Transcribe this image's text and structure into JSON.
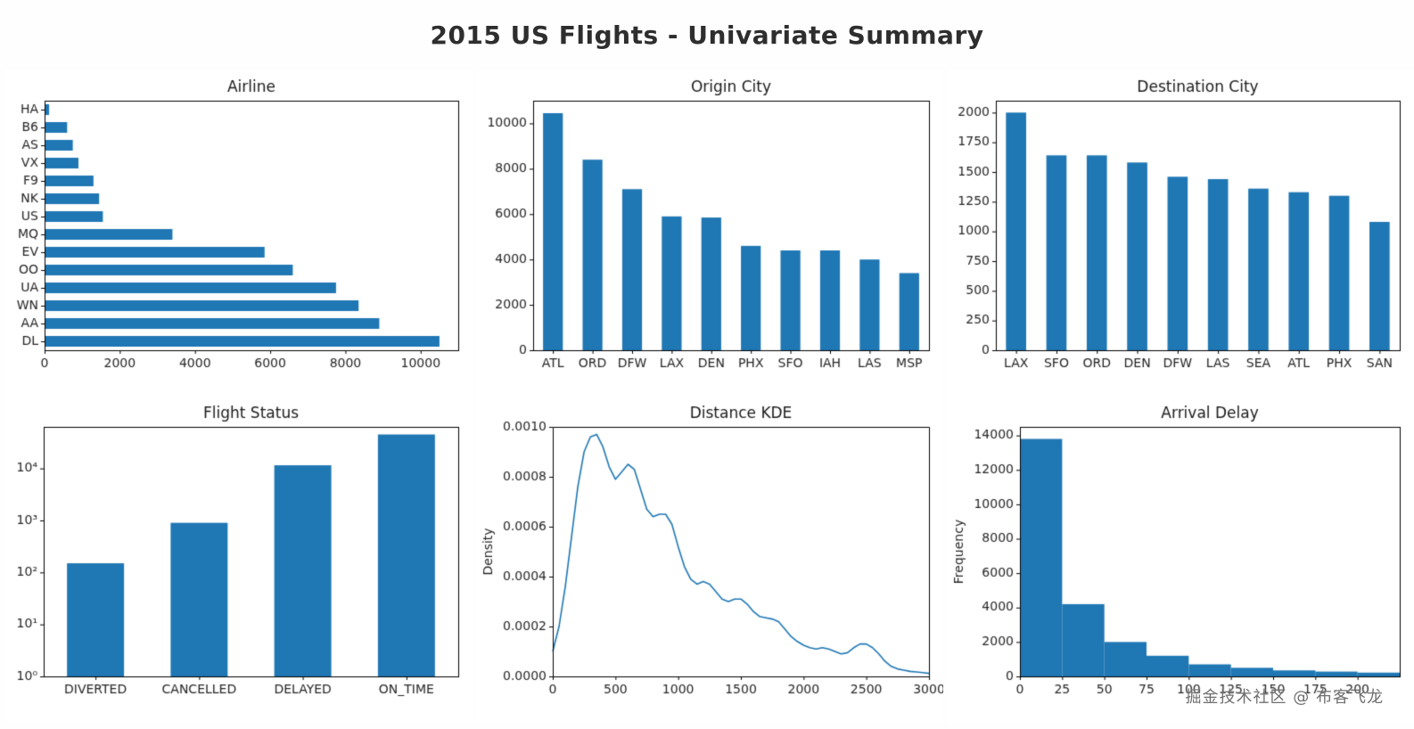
{
  "figure": {
    "title": "2015 US Flights - Univariate Summary",
    "watermark": "掘金技术社区 @ 布客飞龙"
  },
  "colors": {
    "bar": "#1f77b4",
    "line": "#1f77b4",
    "axis": "#000000",
    "title_text": "#1a1a1a",
    "tick_text": "#262626"
  },
  "chart_data": [
    {
      "type": "barh",
      "title": "Airline",
      "categories": [
        "HA",
        "B6",
        "AS",
        "VX",
        "F9",
        "NK",
        "US",
        "MQ",
        "EV",
        "OO",
        "UA",
        "WN",
        "AA",
        "DL"
      ],
      "values": [
        120,
        600,
        750,
        900,
        1300,
        1450,
        1550,
        3400,
        5850,
        6600,
        7750,
        8350,
        8900,
        10500
      ],
      "xlim": [
        0,
        11000
      ],
      "xticks": [
        0,
        2000,
        4000,
        6000,
        8000,
        10000
      ],
      "ylim": [
        0,
        1
      ],
      "bar_frac": 0.6,
      "grid": false
    },
    {
      "type": "bar",
      "title": "Origin City",
      "categories": [
        "ATL",
        "ORD",
        "DFW",
        "LAX",
        "DEN",
        "PHX",
        "SFO",
        "IAH",
        "LAS",
        "MSP"
      ],
      "values": [
        10450,
        8400,
        7100,
        5900,
        5850,
        4600,
        4400,
        4400,
        4000,
        3400
      ],
      "ylim": [
        0,
        11000
      ],
      "yticks": [
        0,
        2000,
        4000,
        6000,
        8000,
        10000
      ],
      "bar_frac": 0.5,
      "grid": false
    },
    {
      "type": "bar",
      "title": "Destination City",
      "categories": [
        "LAX",
        "SFO",
        "ORD",
        "DEN",
        "DFW",
        "LAS",
        "SEA",
        "ATL",
        "PHX",
        "SAN"
      ],
      "values": [
        2000,
        1640,
        1640,
        1580,
        1460,
        1440,
        1360,
        1330,
        1300,
        1080
      ],
      "ylim": [
        0,
        2100
      ],
      "yticks": [
        0,
        250,
        500,
        750,
        1000,
        1250,
        1500,
        1750,
        2000
      ],
      "bar_frac": 0.5,
      "grid": false
    },
    {
      "type": "bar",
      "title": "Flight Status",
      "categories": [
        "DIVERTED",
        "CANCELLED",
        "DELAYED",
        "ON_TIME"
      ],
      "values": [
        150,
        900,
        11500,
        45000
      ],
      "log_scale": true,
      "ylim": [
        1,
        63000
      ],
      "yticks": [
        1,
        10,
        100,
        1000,
        10000
      ],
      "ytick_labels": [
        "10⁰",
        "10¹",
        "10²",
        "10³",
        "10⁴"
      ],
      "bar_frac": 0.55,
      "grid": false
    },
    {
      "type": "line",
      "title": "Distance KDE",
      "ylabel": "Density",
      "x": [
        0,
        50,
        100,
        150,
        200,
        250,
        300,
        350,
        400,
        450,
        500,
        550,
        600,
        650,
        700,
        750,
        800,
        850,
        900,
        950,
        1000,
        1050,
        1100,
        1150,
        1200,
        1250,
        1300,
        1350,
        1400,
        1450,
        1500,
        1550,
        1600,
        1650,
        1700,
        1750,
        1800,
        1850,
        1900,
        1950,
        2000,
        2050,
        2100,
        2150,
        2200,
        2250,
        2300,
        2350,
        2400,
        2450,
        2500,
        2550,
        2600,
        2650,
        2700,
        2750,
        2800,
        2850,
        2900,
        2950,
        3000
      ],
      "y": [
        0.0001,
        0.0002,
        0.00036,
        0.00056,
        0.00076,
        0.0009,
        0.00096,
        0.00097,
        0.00092,
        0.00084,
        0.00079,
        0.00082,
        0.00085,
        0.00083,
        0.00075,
        0.00067,
        0.00064,
        0.00065,
        0.00065,
        0.00061,
        0.00052,
        0.00044,
        0.00039,
        0.00037,
        0.00038,
        0.00037,
        0.00034,
        0.00031,
        0.0003,
        0.00031,
        0.00031,
        0.00029,
        0.00026,
        0.00024,
        0.000235,
        0.00023,
        0.00022,
        0.00019,
        0.00016,
        0.00014,
        0.000125,
        0.000115,
        0.00011,
        0.000115,
        0.00011,
        0.0001,
        9e-05,
        9.5e-05,
        0.000115,
        0.00013,
        0.00013,
        0.000115,
        9e-05,
        6e-05,
        4e-05,
        3e-05,
        2.5e-05,
        2e-05,
        1.8e-05,
        1.5e-05,
        1.2e-05
      ],
      "xlim": [
        0,
        3000
      ],
      "ylim": [
        0,
        0.001
      ],
      "xticks": [
        0,
        500,
        1000,
        1500,
        2000,
        2500,
        3000
      ],
      "yticks": [
        0.0,
        0.0002,
        0.0004,
        0.0006,
        0.0008,
        0.001
      ],
      "ytick_decimals": 4,
      "grid": false
    },
    {
      "type": "histogram",
      "title": "Arrival Delay",
      "ylabel": "Frequency",
      "bin_edges": [
        0,
        25,
        50,
        75,
        100,
        125,
        150,
        175,
        200,
        225
      ],
      "values": [
        13800,
        4200,
        2000,
        1200,
        700,
        500,
        350,
        280,
        220
      ],
      "xlim": [
        0,
        225
      ],
      "xticks": [
        0,
        25,
        50,
        75,
        100,
        125,
        150,
        175,
        200
      ],
      "ylim": [
        0,
        14500
      ],
      "yticks": [
        0,
        2000,
        4000,
        6000,
        8000,
        10000,
        12000,
        14000
      ],
      "grid": false
    }
  ]
}
